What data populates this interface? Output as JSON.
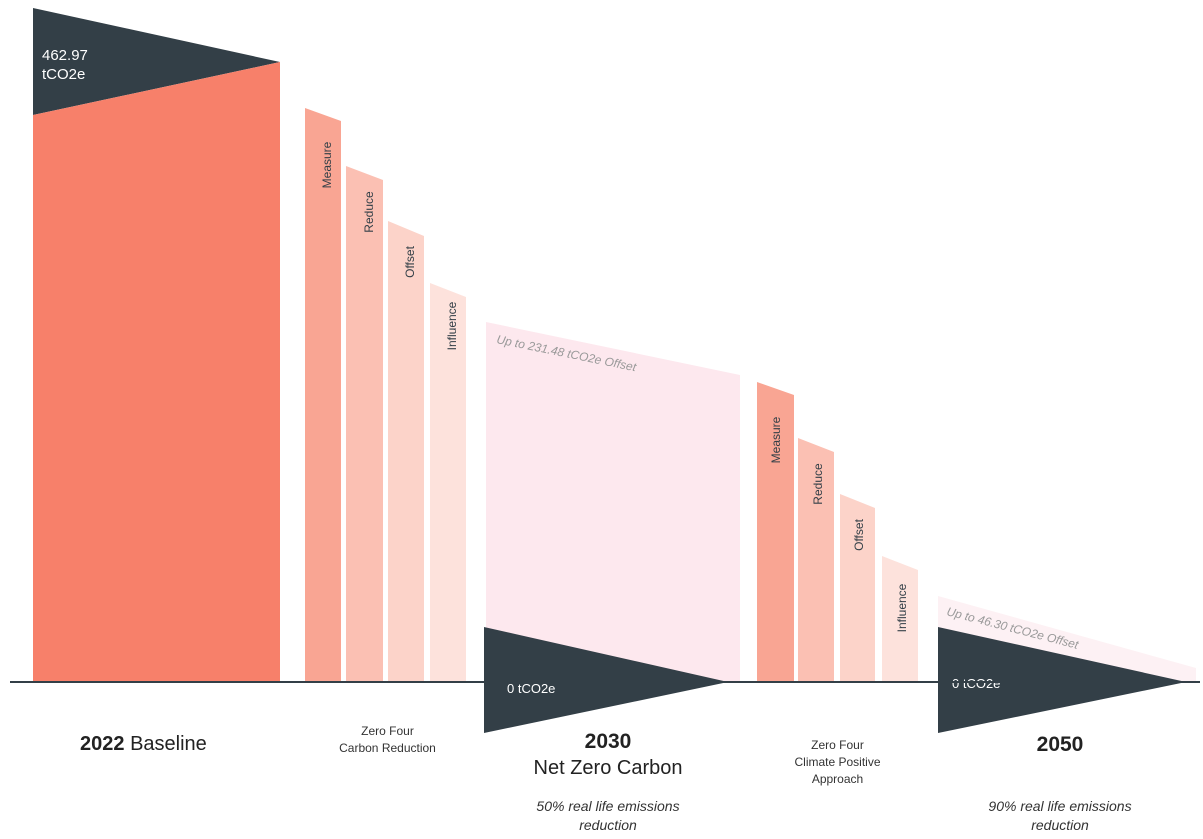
{
  "colors": {
    "dark": "#333f47",
    "coral": "#f7806a",
    "step": "#f9a593",
    "step_light": "#fbc0b3",
    "step_lighter": "#fcd3c9",
    "step_lightest": "#fde2dc",
    "offset_band": "#fde8ee",
    "offset_band_light": "#fdf1f4",
    "axis": "#333f47"
  },
  "baseline": {
    "value_line1": "462.97",
    "value_line2": "tCO2e",
    "year": "2022",
    "label": "Baseline"
  },
  "phase1": {
    "steps": [
      "Measure",
      "Reduce",
      "Offset",
      "Influence"
    ],
    "caption_line1": "Zero Four",
    "caption_line2": "Carbon Reduction",
    "offset_note": "Up to 231.48 tCO2e Offset"
  },
  "milestone2030": {
    "value": "0 tCO2e",
    "year": "2030",
    "title": "Net Zero Carbon",
    "note_line1": "50% real life emissions",
    "note_line2": "reduction"
  },
  "phase2": {
    "steps": [
      "Measure",
      "Reduce",
      "Offset",
      "Influence"
    ],
    "caption_line1": "Zero Four",
    "caption_line2": "Climate Positive",
    "caption_line3": "Approach",
    "offset_note": "Up to 46.30 tCO2e Offset"
  },
  "milestone2050": {
    "value": "0 tCO2e",
    "year": "2050",
    "note_line1": "90% real life emissions",
    "note_line2": "reduction"
  }
}
